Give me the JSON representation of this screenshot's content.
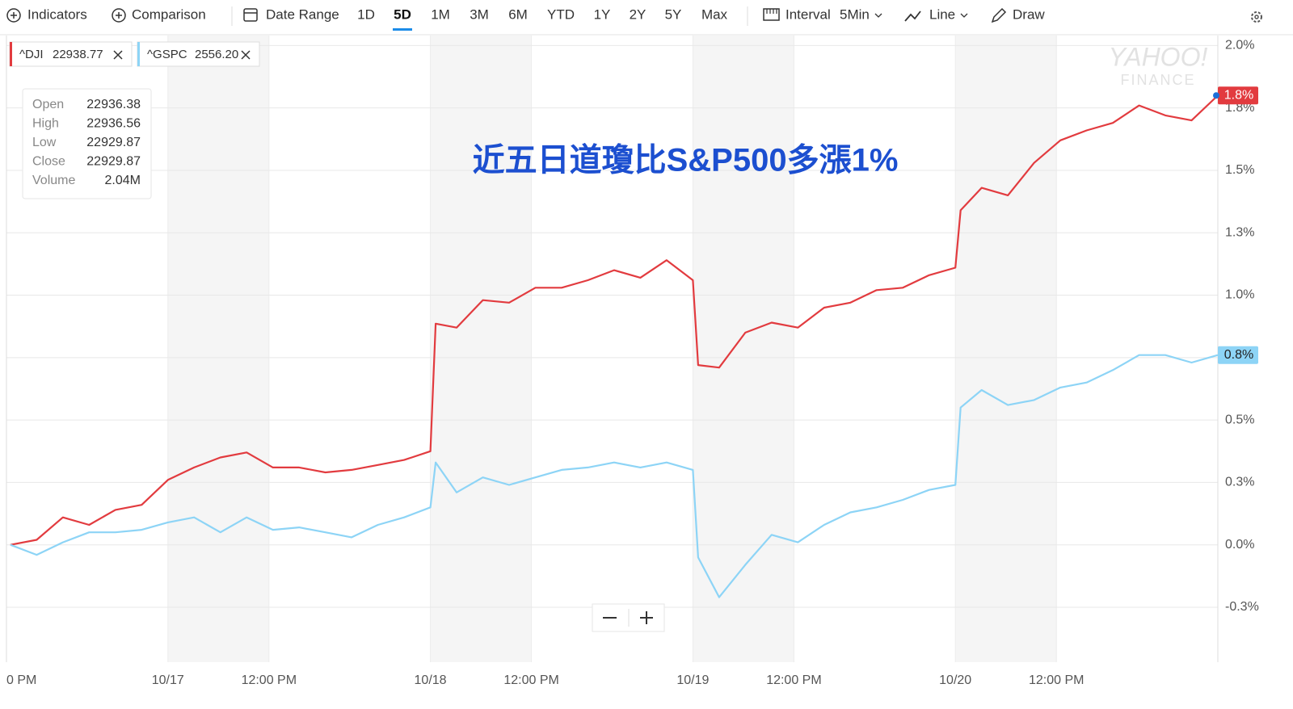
{
  "toolbar": {
    "indicators": "Indicators",
    "comparison": "Comparison",
    "date_range": "Date Range",
    "ranges": [
      "1D",
      "5D",
      "1M",
      "3M",
      "6M",
      "YTD",
      "1Y",
      "2Y",
      "5Y",
      "Max"
    ],
    "interval": "Interval",
    "interval_value": "5Min",
    "chart_style": "Line",
    "draw": "Draw"
  },
  "watermark": {
    "brand": "YAHOO!",
    "product": "FINANCE"
  },
  "chart_data": {
    "type": "line",
    "annotation": "近五日道瓊比S&P500多漲1%",
    "x": [
      0.4,
      0.5,
      0.6,
      0.7,
      0.8,
      0.9,
      1.0,
      1.1,
      1.2,
      1.3,
      1.4,
      1.5,
      1.6,
      1.7,
      1.8,
      1.9,
      2.0,
      2.02,
      2.1,
      2.2,
      2.3,
      2.4,
      2.5,
      2.6,
      2.7,
      2.8,
      2.9,
      3.0,
      3.02,
      3.1,
      3.2,
      3.3,
      3.4,
      3.5,
      3.6,
      3.7,
      3.8,
      3.9,
      4.0,
      4.02,
      4.1,
      4.2,
      4.3,
      4.4,
      4.5,
      4.6,
      4.7,
      4.8,
      4.9,
      5.0
    ],
    "xlim": [
      0.385,
      5.0
    ],
    "xticks": [
      {
        "value": 0.385,
        "label": "0 PM"
      },
      {
        "value": 1,
        "label": "10/17"
      },
      {
        "value": 1.385,
        "label": "12:00 PM"
      },
      {
        "value": 2,
        "label": "10/18"
      },
      {
        "value": 2.385,
        "label": "12:00 PM"
      },
      {
        "value": 3,
        "label": "10/19"
      },
      {
        "value": 3.385,
        "label": "12:00 PM"
      },
      {
        "value": 4,
        "label": "10/20"
      },
      {
        "value": 4.385,
        "label": "12:00 PM"
      }
    ],
    "ylim": [
      -0.47,
      2.04
    ],
    "yticks": [
      {
        "value": 2.0,
        "label": "2.0%"
      },
      {
        "value": 1.75,
        "label": "1.8%"
      },
      {
        "value": 1.5,
        "label": "1.5%"
      },
      {
        "value": 1.25,
        "label": "1.3%"
      },
      {
        "value": 1.0,
        "label": "1.0%"
      },
      {
        "value": 0.75,
        "label": "0.8%"
      },
      {
        "value": 0.5,
        "label": "0.5%"
      },
      {
        "value": 0.25,
        "label": "0.3%"
      },
      {
        "value": 0,
        "label": "0.0%"
      },
      {
        "value": -0.25,
        "label": "-0.3%"
      }
    ],
    "grid": true,
    "series": [
      {
        "name": "^DJI",
        "quote": "22938.77",
        "color": "#e23b3f",
        "last_label": "1.8%",
        "values": [
          0.0,
          0.02,
          0.11,
          0.08,
          0.14,
          0.16,
          0.26,
          0.31,
          0.35,
          0.37,
          0.31,
          0.31,
          0.29,
          0.3,
          0.32,
          0.34,
          0.375,
          0.886,
          0.87,
          0.98,
          0.97,
          1.03,
          1.03,
          1.06,
          1.1,
          1.07,
          1.14,
          1.06,
          0.72,
          0.71,
          0.85,
          0.89,
          0.87,
          0.95,
          0.97,
          1.02,
          1.03,
          1.08,
          1.11,
          1.34,
          1.43,
          1.4,
          1.53,
          1.62,
          1.66,
          1.69,
          1.76,
          1.72,
          1.7,
          1.8
        ]
      },
      {
        "name": "^GSPC",
        "quote": "2556.20",
        "color": "#8dd4f6",
        "last_label": "0.8%",
        "values": [
          0.0,
          -0.04,
          0.01,
          0.05,
          0.05,
          0.06,
          0.09,
          0.11,
          0.05,
          0.11,
          0.06,
          0.07,
          0.05,
          0.03,
          0.08,
          0.11,
          0.15,
          0.33,
          0.21,
          0.27,
          0.24,
          0.27,
          0.3,
          0.31,
          0.33,
          0.31,
          0.33,
          0.3,
          -0.05,
          -0.21,
          -0.08,
          0.04,
          0.01,
          0.08,
          0.13,
          0.15,
          0.18,
          0.22,
          0.24,
          0.55,
          0.62,
          0.56,
          0.58,
          0.63,
          0.65,
          0.7,
          0.76,
          0.76,
          0.73,
          0.76
        ]
      }
    ],
    "tooltip": {
      "rows": [
        [
          "Open",
          "22936.38"
        ],
        [
          "High",
          "22936.56"
        ],
        [
          "Low",
          "22929.87"
        ],
        [
          "Close",
          "22929.87"
        ],
        [
          "Volume",
          "2.04M"
        ]
      ]
    }
  }
}
